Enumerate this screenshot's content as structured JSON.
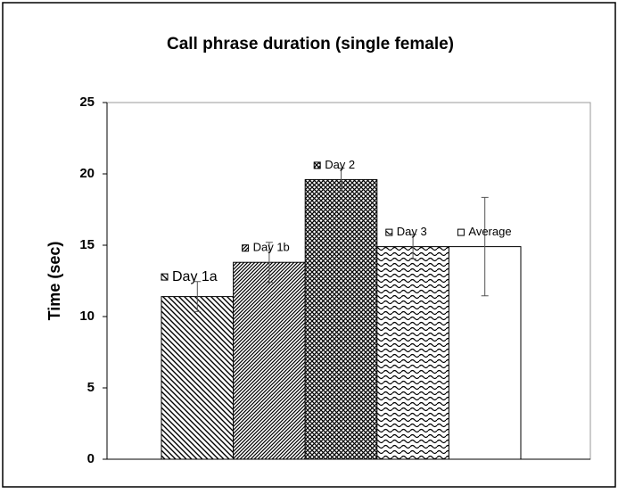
{
  "chart_data": {
    "type": "bar",
    "title": "Call phrase duration (single female)",
    "y_label": "Time (sec)",
    "categories": [
      "Day 1a",
      "Day 1b",
      "Day 2",
      "Day 3",
      "Average"
    ],
    "values": [
      11.4,
      13.8,
      19.6,
      14.9,
      14.9
    ],
    "errors": [
      1.05,
      1.4,
      0.8,
      0.85,
      3.45
    ],
    "color": "#000000",
    "ylim": [
      0,
      25
    ],
    "yticks": [
      0,
      5,
      10,
      15,
      20,
      25
    ]
  }
}
